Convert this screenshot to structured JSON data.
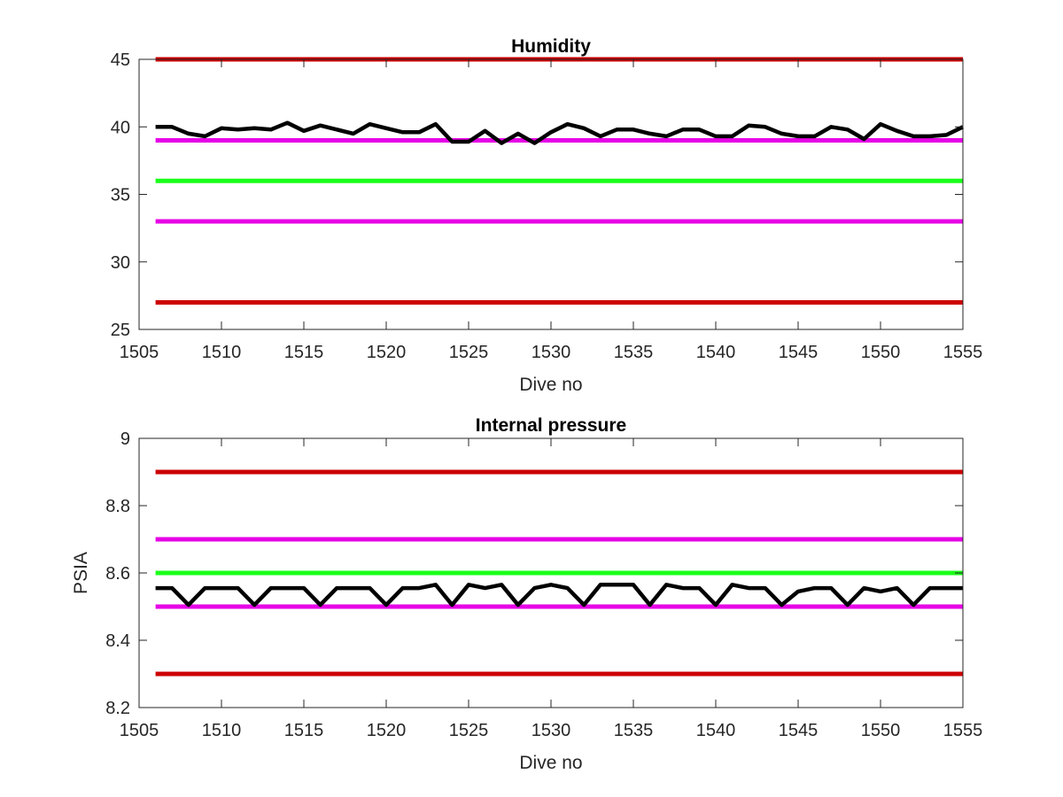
{
  "chart_data": [
    {
      "type": "line",
      "title": "Humidity",
      "xlabel": "Dive no",
      "ylabel": "",
      "xlim": [
        1505,
        1555
      ],
      "ylim": [
        25,
        45
      ],
      "xticks": [
        "1505",
        "1510",
        "1515",
        "1520",
        "1525",
        "1530",
        "1535",
        "1540",
        "1545",
        "1550",
        "1555"
      ],
      "yticks": [
        "25",
        "30",
        "35",
        "40",
        "45"
      ],
      "grid": false,
      "thresholds": [
        {
          "value": 45,
          "color": "#cc0000"
        },
        {
          "value": 39,
          "color": "#e600e6"
        },
        {
          "value": 36,
          "color": "#1aff1a"
        },
        {
          "value": 33,
          "color": "#e600e6"
        },
        {
          "value": 27,
          "color": "#cc0000"
        }
      ],
      "series": [
        {
          "color": "#000000",
          "x": [
            1506,
            1507,
            1508,
            1509,
            1510,
            1511,
            1512,
            1513,
            1514,
            1515,
            1516,
            1517,
            1518,
            1519,
            1520,
            1521,
            1522,
            1523,
            1524,
            1525,
            1526,
            1527,
            1528,
            1529,
            1530,
            1531,
            1532,
            1533,
            1534,
            1535,
            1536,
            1537,
            1538,
            1539,
            1540,
            1541,
            1542,
            1543,
            1544,
            1545,
            1546,
            1547,
            1548,
            1549,
            1550,
            1551,
            1552,
            1553,
            1554,
            1555
          ],
          "values": [
            40.0,
            40.0,
            39.5,
            39.3,
            39.9,
            39.8,
            39.9,
            39.8,
            40.3,
            39.7,
            40.1,
            39.8,
            39.5,
            40.2,
            39.9,
            39.6,
            39.6,
            40.2,
            38.9,
            38.9,
            39.7,
            38.8,
            39.5,
            38.8,
            39.6,
            40.2,
            39.9,
            39.3,
            39.8,
            39.8,
            39.5,
            39.3,
            39.8,
            39.8,
            39.3,
            39.3,
            40.1,
            40.0,
            39.5,
            39.3,
            39.3,
            40.0,
            39.8,
            39.1,
            40.2,
            39.7,
            39.3,
            39.3,
            39.4,
            40.0
          ]
        }
      ]
    },
    {
      "type": "line",
      "title": "Internal pressure",
      "xlabel": "Dive no",
      "ylabel": "PSIA",
      "xlim": [
        1505,
        1555
      ],
      "ylim": [
        8.2,
        9.0
      ],
      "xticks": [
        "1505",
        "1510",
        "1515",
        "1520",
        "1525",
        "1530",
        "1535",
        "1540",
        "1545",
        "1550",
        "1555"
      ],
      "yticks": [
        "8.2",
        "8.4",
        "8.6",
        "8.8",
        "9"
      ],
      "grid": false,
      "thresholds": [
        {
          "value": 8.9,
          "color": "#cc0000"
        },
        {
          "value": 8.7,
          "color": "#e600e6"
        },
        {
          "value": 8.6,
          "color": "#1aff1a"
        },
        {
          "value": 8.5,
          "color": "#e600e6"
        },
        {
          "value": 8.3,
          "color": "#cc0000"
        }
      ],
      "series": [
        {
          "color": "#000000",
          "x": [
            1506,
            1507,
            1508,
            1509,
            1510,
            1511,
            1512,
            1513,
            1514,
            1515,
            1516,
            1517,
            1518,
            1519,
            1520,
            1521,
            1522,
            1523,
            1524,
            1525,
            1526,
            1527,
            1528,
            1529,
            1530,
            1531,
            1532,
            1533,
            1534,
            1535,
            1536,
            1537,
            1538,
            1539,
            1540,
            1541,
            1542,
            1543,
            1544,
            1545,
            1546,
            1547,
            1548,
            1549,
            1550,
            1551,
            1552,
            1553,
            1554,
            1555
          ],
          "values": [
            8.555,
            8.555,
            8.505,
            8.555,
            8.555,
            8.555,
            8.505,
            8.555,
            8.555,
            8.555,
            8.505,
            8.555,
            8.555,
            8.555,
            8.505,
            8.555,
            8.555,
            8.565,
            8.505,
            8.565,
            8.555,
            8.565,
            8.505,
            8.555,
            8.565,
            8.555,
            8.505,
            8.565,
            8.565,
            8.565,
            8.505,
            8.565,
            8.555,
            8.555,
            8.505,
            8.565,
            8.555,
            8.555,
            8.505,
            8.545,
            8.555,
            8.555,
            8.505,
            8.555,
            8.545,
            8.555,
            8.505,
            8.555,
            8.555,
            8.555
          ]
        }
      ]
    }
  ]
}
